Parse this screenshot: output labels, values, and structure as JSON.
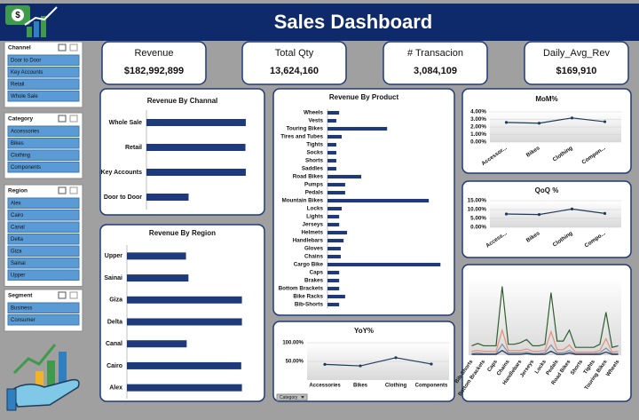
{
  "title": "Sales Dashboard",
  "slicers": [
    {
      "title": "Channel",
      "items": [
        "Door to Door",
        "Key Accounts",
        "Retail",
        "Whole Sale"
      ]
    },
    {
      "title": "Category",
      "items": [
        "Accessories",
        "Bikes",
        "Clothing",
        "Components"
      ]
    },
    {
      "title": "Region",
      "items": [
        "Alex",
        "Cairo",
        "Canal",
        "Delta",
        "Giza",
        "Sainai",
        "Upper"
      ]
    },
    {
      "title": "Segment",
      "items": [
        "Business",
        "Consumer"
      ]
    }
  ],
  "kpis": [
    {
      "label": "Revenue",
      "value": "$182,992,899"
    },
    {
      "label": "Total Qty",
      "value": "13,624,160"
    },
    {
      "label": "# Transacion",
      "value": "3,084,109"
    },
    {
      "label": "Daily_Avg_Rev",
      "value": "$169,910"
    }
  ],
  "filter_button": "Category",
  "chart_data": [
    {
      "type": "bar",
      "orientation": "horizontal",
      "title": "Revenue By Channal",
      "color": "#1f3a7a",
      "categories": [
        "Whole Sale",
        "Retail",
        "Key Accounts",
        "Door to Door"
      ],
      "values": [
        53500000,
        53300000,
        53500000,
        22700000
      ],
      "xlim": [
        0,
        54000000
      ]
    },
    {
      "type": "bar",
      "orientation": "horizontal",
      "title": "Revenue By Region",
      "color": "#1f3a7a",
      "categories": [
        "Upper",
        "Sainai",
        "Giza",
        "Delta",
        "Canal",
        "Cairo",
        "Alex"
      ],
      "values": [
        16900000,
        17600000,
        32900000,
        32900000,
        17100000,
        32700000,
        32900000
      ],
      "xlim": [
        0,
        33000000
      ]
    },
    {
      "type": "bar",
      "orientation": "horizontal",
      "title": "Revenue By Product",
      "color": "#1f3a7a",
      "categories": [
        "Wheels",
        "Vests",
        "Touring Bikes",
        "Tires and Tubes",
        "Tights",
        "Socks",
        "Shorts",
        "Saddles",
        "Road Bikes",
        "Pumps",
        "Pedals",
        "Mountain Bikes",
        "Locks",
        "Lights",
        "Jerseys",
        "Helmets",
        "Handlebars",
        "Gloves",
        "Chains",
        "Cargo Bike",
        "Caps",
        "Brakes",
        "Bottom Brackets",
        "Bike Racks",
        "Bib-Shorts"
      ],
      "values": [
        3700000,
        2800000,
        18900000,
        4500000,
        2800000,
        2800000,
        2800000,
        2800000,
        10700000,
        5600000,
        5600000,
        32100000,
        4500000,
        3700000,
        3700000,
        6200000,
        5100000,
        4200000,
        4200000,
        35800000,
        3700000,
        3700000,
        3700000,
        5600000,
        3700000
      ],
      "xlim": [
        0,
        36000000
      ]
    },
    {
      "type": "line",
      "title": "MoM%",
      "markers": true,
      "grid": true,
      "categories": [
        "Accessor...",
        "Bikes",
        "Clothing",
        "Compon..."
      ],
      "series": [
        {
          "color": "#1f3a5a",
          "values": [
            2.6,
            2.5,
            3.2,
            2.7
          ]
        }
      ],
      "ylim": [
        0,
        4
      ],
      "yticks": [
        {
          "value": 0,
          "label": "0.00%"
        },
        {
          "value": 1,
          "label": "1.00%"
        },
        {
          "value": 2,
          "label": "2.00%"
        },
        {
          "value": 3,
          "label": "3.00%"
        },
        {
          "value": 4,
          "label": "4.00%"
        }
      ]
    },
    {
      "type": "line",
      "title": "QoQ %",
      "markers": true,
      "grid": true,
      "categories": [
        "Access...",
        "Bikes",
        "Clothing",
        "Compo..."
      ],
      "series": [
        {
          "color": "#1f3a5a",
          "values": [
            7.5,
            7.2,
            10.3,
            7.8
          ]
        }
      ],
      "ylim": [
        0,
        15
      ],
      "yticks": [
        {
          "value": 0,
          "label": "0.00%"
        },
        {
          "value": 5,
          "label": "5.00%"
        },
        {
          "value": 10,
          "label": "10.00%"
        },
        {
          "value": 15,
          "label": "15.00%"
        }
      ]
    },
    {
      "type": "line",
      "title": "YoY%",
      "markers": true,
      "grid": true,
      "categories": [
        "Accessories",
        "Bikes",
        "Clothing",
        "Components"
      ],
      "series": [
        {
          "color": "#1f3a5a",
          "values": [
            42,
            38,
            60,
            43
          ]
        }
      ],
      "ylim": [
        0,
        100
      ],
      "yticks": [
        {
          "value": 50,
          "label": "50.00%"
        },
        {
          "value": 100,
          "label": "100.00%"
        }
      ]
    },
    {
      "type": "line",
      "markers": false,
      "grid": false,
      "categories": [
        "Bib-Shorts",
        null,
        "Bottom Brackets",
        null,
        "Caps",
        null,
        "Chains",
        null,
        "Handlebars",
        null,
        "Jerseys",
        null,
        "Locks",
        null,
        "Pedals",
        null,
        "Road Bikes",
        null,
        "Shorts",
        null,
        "Tights",
        null,
        "Touring Bikes",
        null,
        "Wheels"
      ],
      "series": [
        {
          "color": "#2e5e2e",
          "values": [
            12,
            15,
            12,
            12,
            12,
            88,
            14,
            14,
            16,
            20,
            12,
            12,
            14,
            80,
            18,
            18,
            32,
            10,
            10,
            10,
            10,
            14,
            55,
            10,
            12
          ]
        },
        {
          "color": "#e4907a",
          "values": [
            5,
            6,
            5,
            5,
            5,
            32,
            6,
            6,
            6,
            8,
            5,
            5,
            6,
            30,
            7,
            7,
            13,
            4,
            4,
            4,
            4,
            6,
            21,
            4,
            5
          ]
        },
        {
          "color": "#7f8fa6",
          "values": [
            2,
            3,
            2,
            2,
            2,
            14,
            3,
            3,
            3,
            4,
            2,
            2,
            3,
            13,
            3,
            3,
            6,
            2,
            2,
            2,
            2,
            3,
            9,
            2,
            2
          ]
        },
        {
          "color": "#1f2f5a",
          "values": [
            1,
            1,
            1,
            1,
            1,
            6,
            1,
            1,
            1,
            2,
            1,
            1,
            1,
            5,
            1,
            1,
            3,
            1,
            1,
            1,
            1,
            1,
            4,
            1,
            1
          ]
        }
      ],
      "ylim": [
        0,
        100
      ]
    }
  ]
}
